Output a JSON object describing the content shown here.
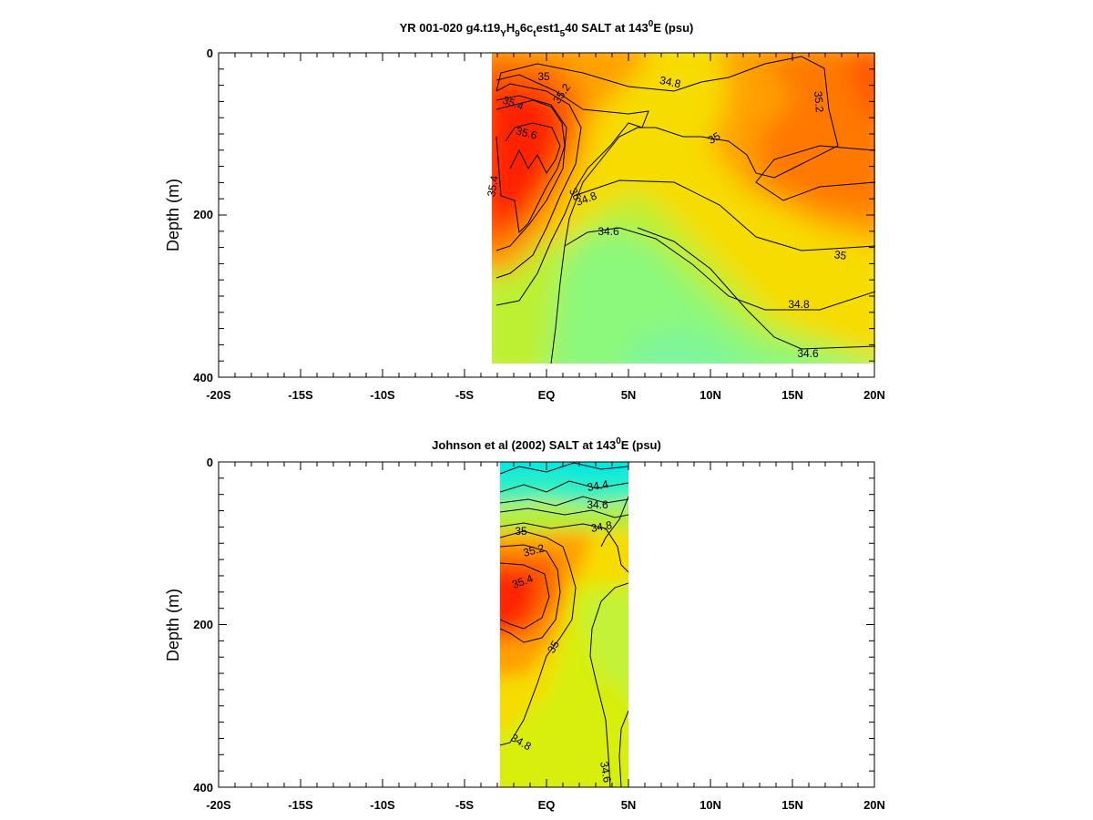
{
  "chart_data": [
    {
      "type": "heatmap",
      "title_main": "YR 001-020 g4.t19",
      "title_sub1": "Y",
      "title_mid1": "H",
      "title_sub2": "9",
      "title_mid2": "6c",
      "title_sub3": "t",
      "title_mid3": "est1",
      "title_sub4": "5",
      "title_mid4": "40 SALT at 143",
      "title_sup": "0",
      "title_end": "E (psu)",
      "ylabel": "Depth (m)",
      "xlim": [
        -20,
        20
      ],
      "ylim": [
        400,
        0
      ],
      "xticks": [
        "-20S",
        "-15S",
        "-10S",
        "-5S",
        "EQ",
        "5N",
        "10N",
        "15N",
        "20N"
      ],
      "yticks": [
        "0",
        "200",
        "400"
      ],
      "data_extent": {
        "lat": [
          -3.3,
          20
        ],
        "depth": [
          0,
          385
        ]
      },
      "levels": [
        "34.6",
        "34.8",
        "35",
        "35.2",
        "35.4",
        "35.6"
      ]
    },
    {
      "type": "heatmap",
      "title_main": "Johnson et al (2002) SALT at 143",
      "title_sup": "0",
      "title_end": "E (psu)",
      "ylabel": "Depth (m)",
      "xlim": [
        -20,
        20
      ],
      "ylim": [
        400,
        0
      ],
      "xticks": [
        "-20S",
        "-15S",
        "-10S",
        "-5S",
        "EQ",
        "5N",
        "10N",
        "15N",
        "20N"
      ],
      "yticks": [
        "0",
        "200",
        "400"
      ],
      "data_extent": {
        "lat": [
          -2.8,
          5
        ],
        "depth": [
          0,
          400
        ]
      },
      "levels": [
        "34.4",
        "34.6",
        "34.8",
        "35",
        "35.2",
        "35.4"
      ]
    }
  ]
}
